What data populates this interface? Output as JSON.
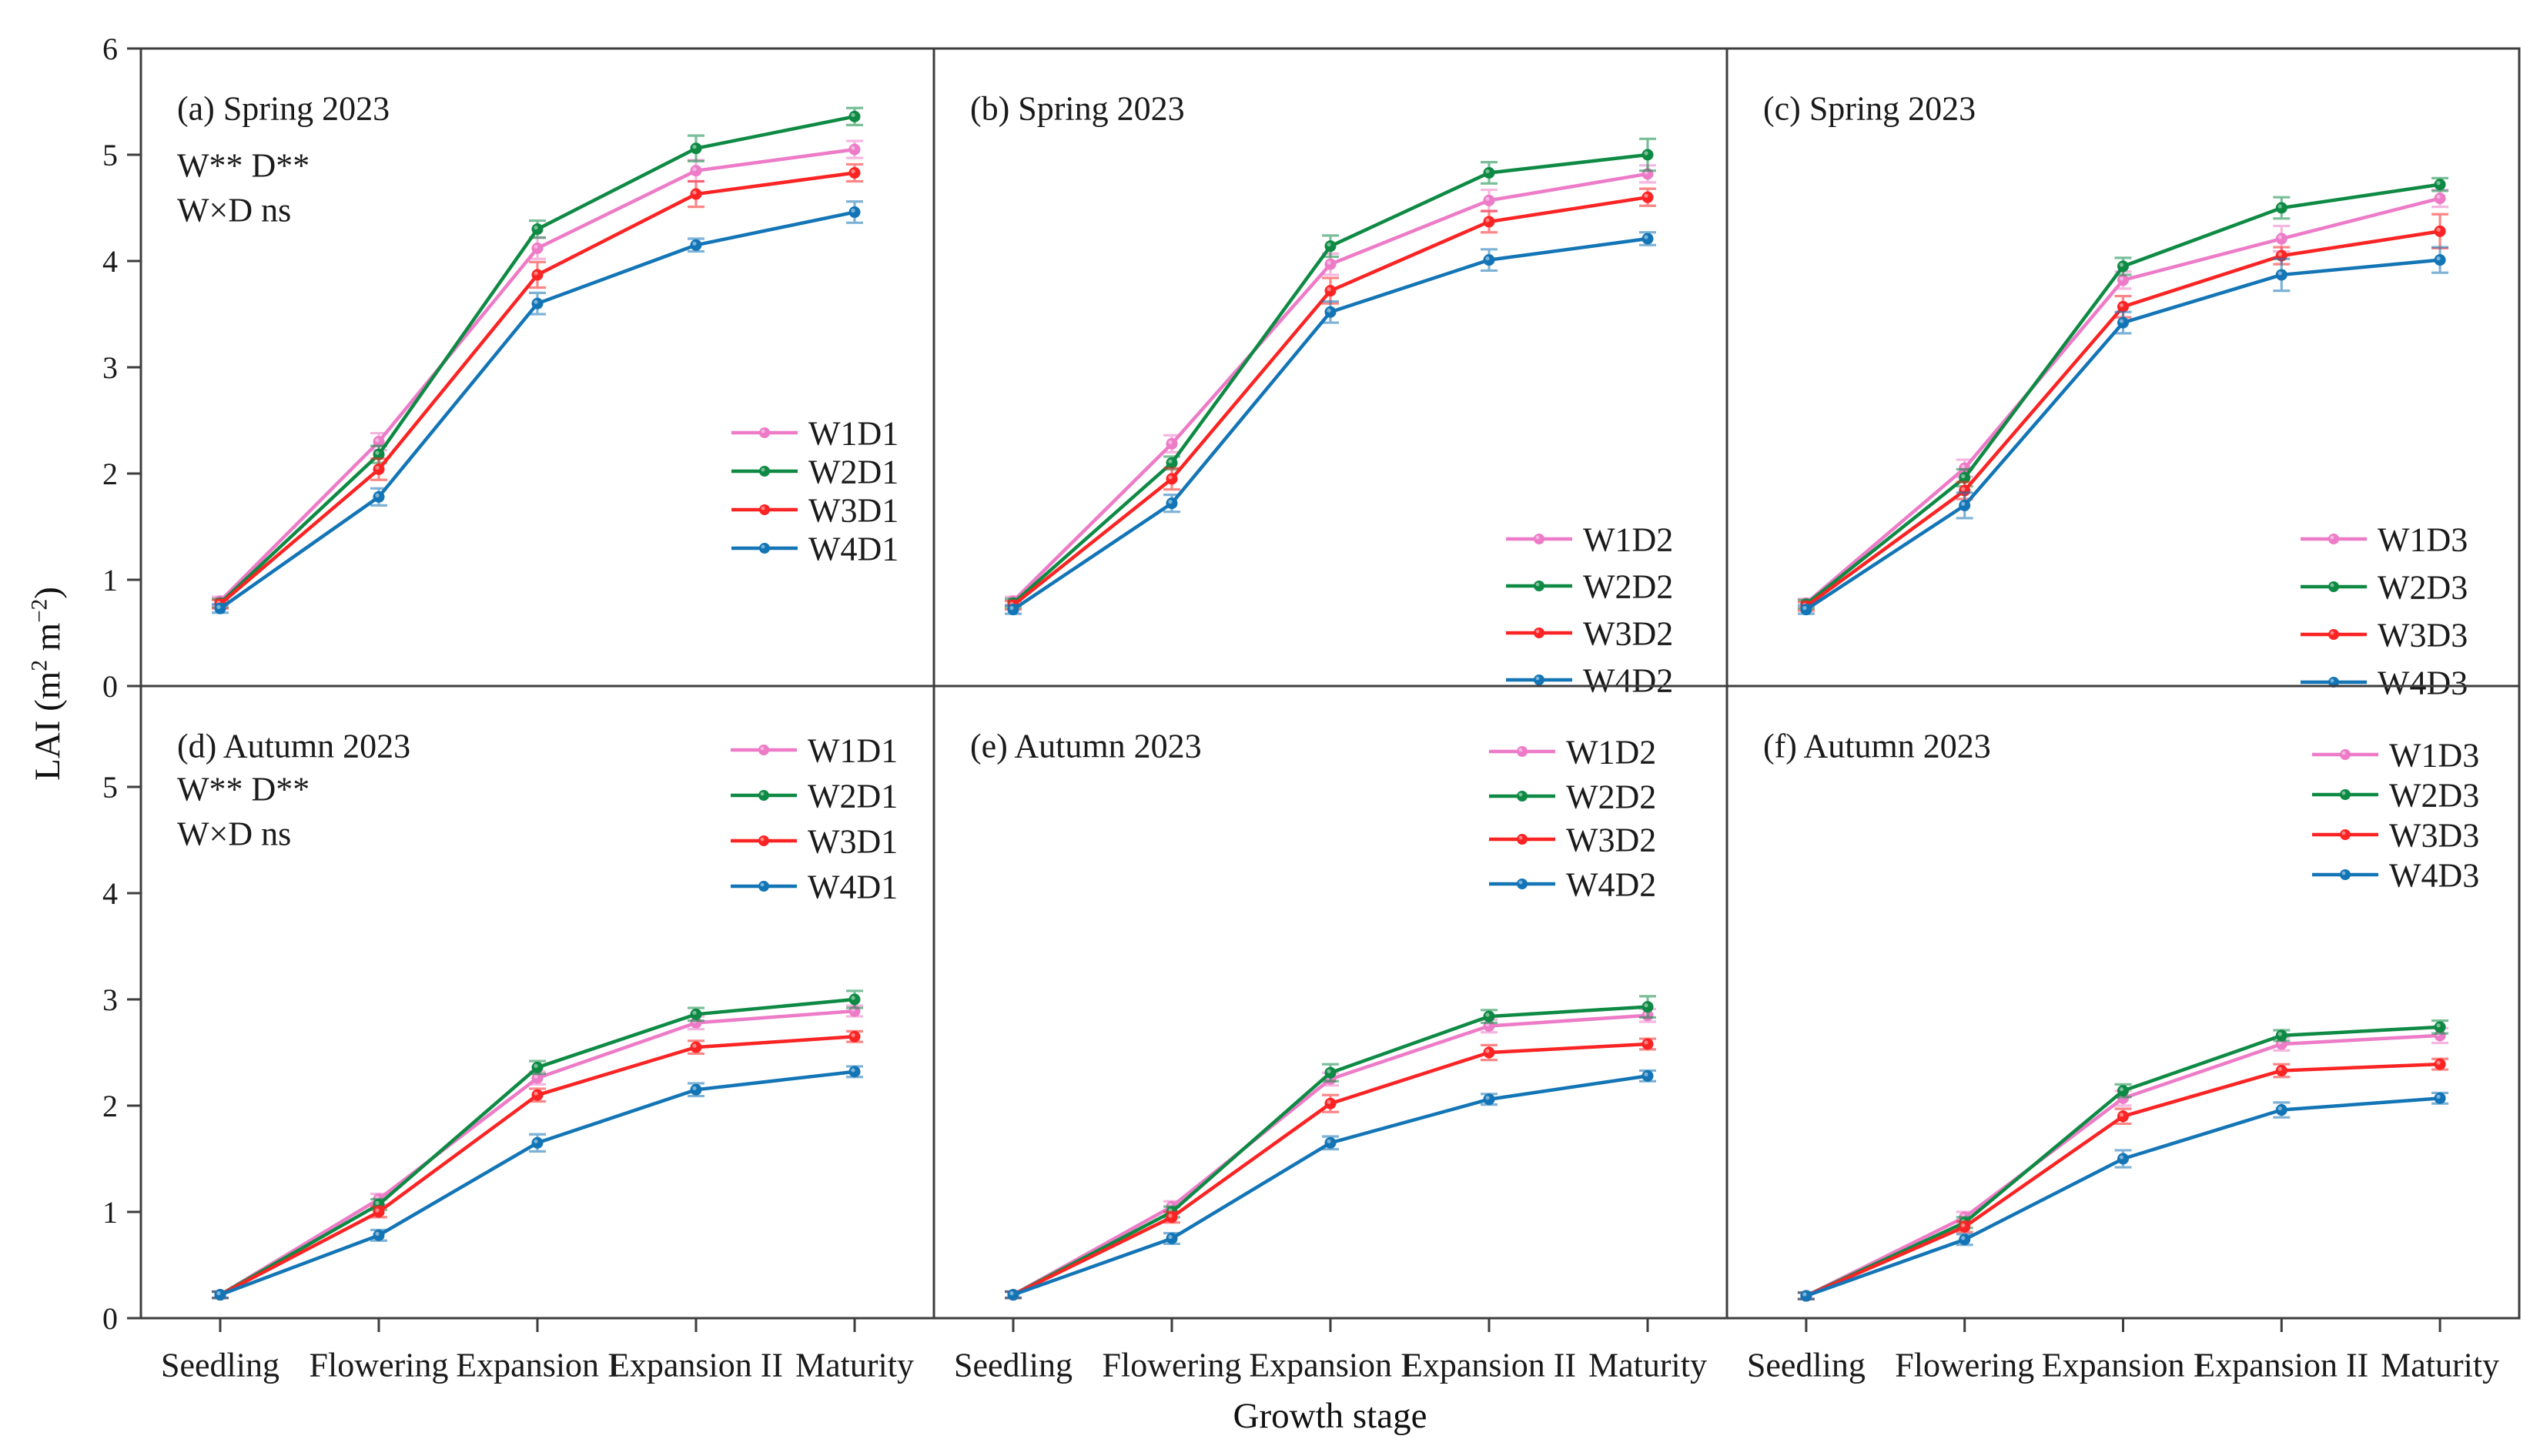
{
  "figure": {
    "x_axis_label": "Growth stage",
    "y_axis_label": {
      "pre": "LAI (m",
      "sup1": "2",
      "mid": " m",
      "sup2": "−2",
      "post": ")"
    }
  },
  "chart_data": {
    "type": "line",
    "categories": [
      "Seedling",
      "Flowering",
      "Expansion I",
      "Expansion II",
      "Maturity"
    ],
    "xlabel": "Growth stage",
    "ylabel": "LAI (m² m⁻²)",
    "legend_position": "inside-right",
    "grid": false,
    "rows": [
      {
        "name": "Spring 2023",
        "ylim": [
          0,
          6
        ],
        "y_ticks": [
          0,
          1,
          2,
          3,
          4,
          5,
          6
        ]
      },
      {
        "name": "Autumn 2023",
        "ylim": [
          0,
          5.95
        ],
        "y_ticks": [
          0,
          1,
          2,
          3,
          4,
          5
        ]
      }
    ],
    "colors": {
      "W1": "#ED7BC7",
      "W2": "#0E8A44",
      "W3": "#FB2424",
      "W4": "#1375B6"
    },
    "panels": [
      {
        "id": "a",
        "label": "(a) Spring 2023",
        "row": 0,
        "col": 0,
        "annotations": [
          "W** D**",
          "W×D ns"
        ],
        "series": [
          {
            "name": "W1D1",
            "color": "W1",
            "values": [
              0.8,
              2.3,
              4.12,
              4.85,
              5.05
            ],
            "errors": [
              0.04,
              0.08,
              0.1,
              0.1,
              0.08
            ]
          },
          {
            "name": "W2D1",
            "color": "W2",
            "values": [
              0.78,
              2.18,
              4.3,
              5.06,
              5.36
            ],
            "errors": [
              0.04,
              0.08,
              0.08,
              0.12,
              0.08
            ]
          },
          {
            "name": "W3D1",
            "color": "W3",
            "values": [
              0.77,
              2.04,
              3.87,
              4.63,
              4.83
            ],
            "errors": [
              0.04,
              0.1,
              0.12,
              0.12,
              0.08
            ]
          },
          {
            "name": "W4D1",
            "color": "W4",
            "values": [
              0.73,
              1.78,
              3.6,
              4.15,
              4.46
            ],
            "errors": [
              0.04,
              0.08,
              0.1,
              0.06,
              0.1
            ]
          }
        ]
      },
      {
        "id": "b",
        "label": "(b) Spring 2023",
        "row": 0,
        "col": 1,
        "annotations": [],
        "series": [
          {
            "name": "W1D2",
            "color": "W1",
            "values": [
              0.8,
              2.28,
              3.97,
              4.57,
              4.82
            ],
            "errors": [
              0.04,
              0.08,
              0.1,
              0.1,
              0.08
            ]
          },
          {
            "name": "W2D2",
            "color": "W2",
            "values": [
              0.78,
              2.1,
              4.14,
              4.83,
              5.0
            ],
            "errors": [
              0.04,
              0.06,
              0.1,
              0.1,
              0.15
            ]
          },
          {
            "name": "W3D2",
            "color": "W3",
            "values": [
              0.76,
              1.95,
              3.72,
              4.37,
              4.6
            ],
            "errors": [
              0.04,
              0.1,
              0.12,
              0.1,
              0.08
            ]
          },
          {
            "name": "W4D2",
            "color": "W4",
            "values": [
              0.72,
              1.72,
              3.52,
              4.01,
              4.21
            ],
            "errors": [
              0.04,
              0.08,
              0.1,
              0.1,
              0.06
            ]
          }
        ]
      },
      {
        "id": "c",
        "label": "(c) Spring 2023",
        "row": 0,
        "col": 2,
        "annotations": [],
        "series": [
          {
            "name": "W1D3",
            "color": "W1",
            "values": [
              0.78,
              2.05,
              3.82,
              4.21,
              4.59
            ],
            "errors": [
              0.04,
              0.08,
              0.08,
              0.12,
              0.08
            ]
          },
          {
            "name": "W2D3",
            "color": "W2",
            "values": [
              0.77,
              1.96,
              3.95,
              4.5,
              4.72
            ],
            "errors": [
              0.04,
              0.08,
              0.08,
              0.1,
              0.06
            ]
          },
          {
            "name": "W3D3",
            "color": "W3",
            "values": [
              0.75,
              1.84,
              3.57,
              4.05,
              4.28
            ],
            "errors": [
              0.04,
              0.08,
              0.1,
              0.08,
              0.16
            ]
          },
          {
            "name": "W4D3",
            "color": "W4",
            "values": [
              0.72,
              1.7,
              3.42,
              3.87,
              4.01
            ],
            "errors": [
              0.04,
              0.12,
              0.1,
              0.15,
              0.12
            ]
          }
        ]
      },
      {
        "id": "d",
        "label": "(d) Autumn 2023",
        "row": 1,
        "col": 0,
        "annotations": [
          "W** D**",
          "W×D ns"
        ],
        "series": [
          {
            "name": "W1D1",
            "color": "W1",
            "values": [
              0.22,
              1.12,
              2.26,
              2.78,
              2.89
            ],
            "errors": [
              0.03,
              0.05,
              0.06,
              0.06,
              0.05
            ]
          },
          {
            "name": "W2D1",
            "color": "W2",
            "values": [
              0.22,
              1.07,
              2.36,
              2.86,
              3.0
            ],
            "errors": [
              0.03,
              0.05,
              0.06,
              0.06,
              0.08
            ]
          },
          {
            "name": "W3D1",
            "color": "W3",
            "values": [
              0.22,
              1.0,
              2.1,
              2.55,
              2.65
            ],
            "errors": [
              0.03,
              0.05,
              0.06,
              0.06,
              0.05
            ]
          },
          {
            "name": "W4D1",
            "color": "W4",
            "values": [
              0.22,
              0.78,
              1.65,
              2.15,
              2.32
            ],
            "errors": [
              0.03,
              0.05,
              0.08,
              0.06,
              0.05
            ]
          }
        ]
      },
      {
        "id": "e",
        "label": "(e) Autumn 2023",
        "row": 1,
        "col": 1,
        "annotations": [],
        "series": [
          {
            "name": "W1D2",
            "color": "W1",
            "values": [
              0.22,
              1.05,
              2.25,
              2.75,
              2.85
            ],
            "errors": [
              0.03,
              0.05,
              0.06,
              0.06,
              0.06
            ]
          },
          {
            "name": "W2D2",
            "color": "W2",
            "values": [
              0.22,
              1.0,
              2.31,
              2.84,
              2.93
            ],
            "errors": [
              0.03,
              0.05,
              0.08,
              0.06,
              0.1
            ]
          },
          {
            "name": "W3D2",
            "color": "W3",
            "values": [
              0.22,
              0.95,
              2.02,
              2.5,
              2.58
            ],
            "errors": [
              0.03,
              0.05,
              0.08,
              0.07,
              0.05
            ]
          },
          {
            "name": "W4D2",
            "color": "W4",
            "values": [
              0.22,
              0.75,
              1.65,
              2.06,
              2.28
            ],
            "errors": [
              0.03,
              0.05,
              0.06,
              0.05,
              0.05
            ]
          }
        ]
      },
      {
        "id": "f",
        "label": "(f) Autumn 2023",
        "row": 1,
        "col": 2,
        "annotations": [],
        "series": [
          {
            "name": "W1D3",
            "color": "W1",
            "values": [
              0.21,
              0.95,
              2.07,
              2.58,
              2.66
            ],
            "errors": [
              0.03,
              0.05,
              0.07,
              0.06,
              0.07
            ]
          },
          {
            "name": "W2D3",
            "color": "W2",
            "values": [
              0.21,
              0.9,
              2.14,
              2.66,
              2.74
            ],
            "errors": [
              0.03,
              0.05,
              0.06,
              0.05,
              0.06
            ]
          },
          {
            "name": "W3D3",
            "color": "W3",
            "values": [
              0.21,
              0.86,
              1.9,
              2.33,
              2.39
            ],
            "errors": [
              0.03,
              0.05,
              0.07,
              0.06,
              0.05
            ]
          },
          {
            "name": "W4D3",
            "color": "W4",
            "values": [
              0.21,
              0.74,
              1.5,
              1.96,
              2.07
            ],
            "errors": [
              0.03,
              0.05,
              0.08,
              0.07,
              0.05
            ]
          }
        ]
      }
    ]
  }
}
